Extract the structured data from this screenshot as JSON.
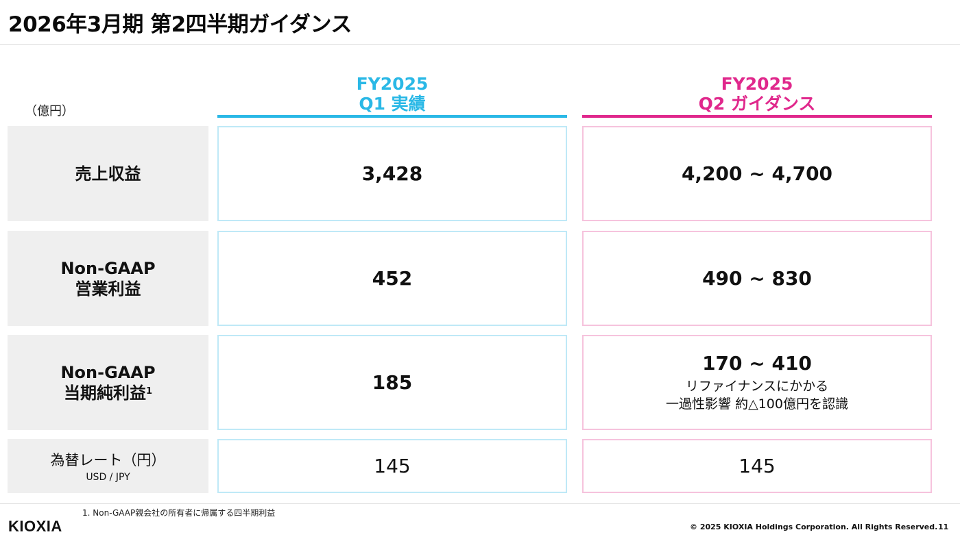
{
  "title": "2026年3月期 第2四半期ガイダンス",
  "unit": "（億円）",
  "columns": {
    "q1": {
      "line1": "FY2025",
      "line2": "Q1 実績",
      "color": "#2ab8e6"
    },
    "q2": {
      "line1": "FY2025",
      "line2": "Q2 ガイダンス",
      "color": "#e0288c"
    }
  },
  "rows": [
    {
      "label": "売上収益",
      "q1": "3,428",
      "q2": "4,200 ~ 4,700"
    },
    {
      "label_line1": "Non-GAAP",
      "label_line2": "営業利益",
      "q1": "452",
      "q2": "490 ~ 830"
    },
    {
      "label_line1": "Non-GAAP",
      "label_line2": "当期純利益",
      "footnote_mark": "1",
      "q1": "185",
      "q2": "170 ~ 410",
      "q2_note_line1": "リファイナンスにかかる",
      "q2_note_line2": "一過性影響 約△100億円を認識"
    },
    {
      "label": "為替レート（円）",
      "sublabel": "USD / JPY",
      "q1": "145",
      "q2": "145"
    }
  ],
  "footnote": "1. Non-GAAP親会社の所有者に帰属する四半期利益",
  "logo": "KIOXIA",
  "copyright": "© 2025 KIOXIA Holdings Corporation. All Rights Reserved.",
  "page_number": "11"
}
